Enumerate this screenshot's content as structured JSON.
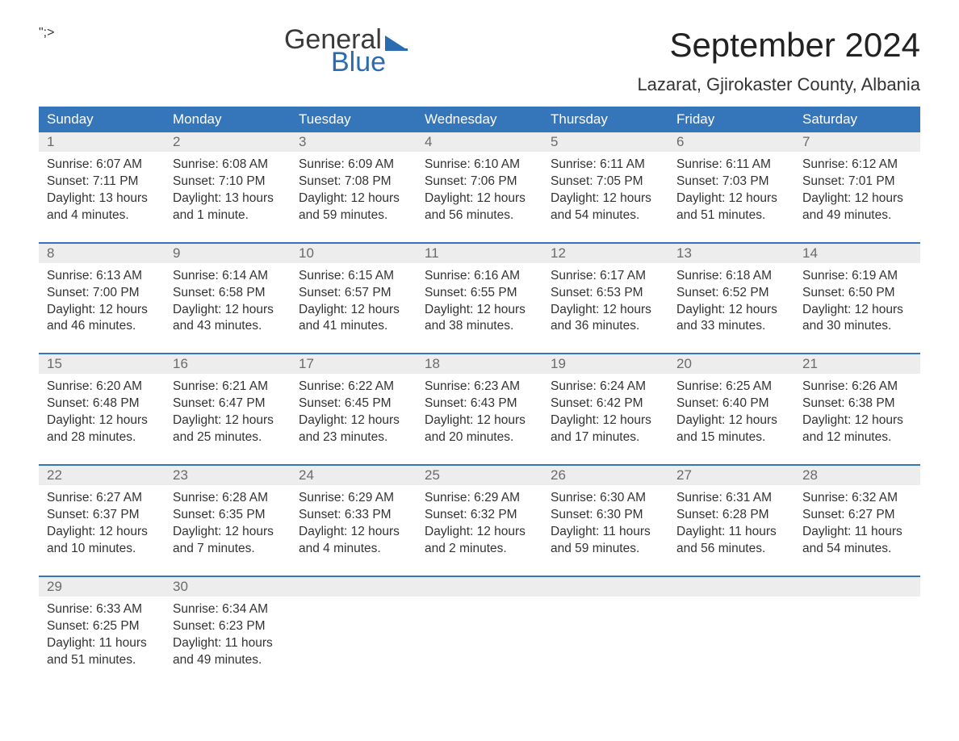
{
  "logo": {
    "word1": "General",
    "word2": "Blue"
  },
  "title": "September 2024",
  "location": "Lazarat, Gjirokaster County, Albania",
  "colors": {
    "header_bg": "#3575b9",
    "header_text": "#ffffff",
    "daynum_bg": "#ededed",
    "daynum_text": "#6b6b6b",
    "body_text": "#333333",
    "week_border": "#3575b9",
    "logo_blue": "#2b6cb0"
  },
  "dow": [
    "Sunday",
    "Monday",
    "Tuesday",
    "Wednesday",
    "Thursday",
    "Friday",
    "Saturday"
  ],
  "weeks": [
    [
      {
        "n": "1",
        "sunrise": "Sunrise: 6:07 AM",
        "sunset": "Sunset: 7:11 PM",
        "d1": "Daylight: 13 hours",
        "d2": "and 4 minutes."
      },
      {
        "n": "2",
        "sunrise": "Sunrise: 6:08 AM",
        "sunset": "Sunset: 7:10 PM",
        "d1": "Daylight: 13 hours",
        "d2": "and 1 minute."
      },
      {
        "n": "3",
        "sunrise": "Sunrise: 6:09 AM",
        "sunset": "Sunset: 7:08 PM",
        "d1": "Daylight: 12 hours",
        "d2": "and 59 minutes."
      },
      {
        "n": "4",
        "sunrise": "Sunrise: 6:10 AM",
        "sunset": "Sunset: 7:06 PM",
        "d1": "Daylight: 12 hours",
        "d2": "and 56 minutes."
      },
      {
        "n": "5",
        "sunrise": "Sunrise: 6:11 AM",
        "sunset": "Sunset: 7:05 PM",
        "d1": "Daylight: 12 hours",
        "d2": "and 54 minutes."
      },
      {
        "n": "6",
        "sunrise": "Sunrise: 6:11 AM",
        "sunset": "Sunset: 7:03 PM",
        "d1": "Daylight: 12 hours",
        "d2": "and 51 minutes."
      },
      {
        "n": "7",
        "sunrise": "Sunrise: 6:12 AM",
        "sunset": "Sunset: 7:01 PM",
        "d1": "Daylight: 12 hours",
        "d2": "and 49 minutes."
      }
    ],
    [
      {
        "n": "8",
        "sunrise": "Sunrise: 6:13 AM",
        "sunset": "Sunset: 7:00 PM",
        "d1": "Daylight: 12 hours",
        "d2": "and 46 minutes."
      },
      {
        "n": "9",
        "sunrise": "Sunrise: 6:14 AM",
        "sunset": "Sunset: 6:58 PM",
        "d1": "Daylight: 12 hours",
        "d2": "and 43 minutes."
      },
      {
        "n": "10",
        "sunrise": "Sunrise: 6:15 AM",
        "sunset": "Sunset: 6:57 PM",
        "d1": "Daylight: 12 hours",
        "d2": "and 41 minutes."
      },
      {
        "n": "11",
        "sunrise": "Sunrise: 6:16 AM",
        "sunset": "Sunset: 6:55 PM",
        "d1": "Daylight: 12 hours",
        "d2": "and 38 minutes."
      },
      {
        "n": "12",
        "sunrise": "Sunrise: 6:17 AM",
        "sunset": "Sunset: 6:53 PM",
        "d1": "Daylight: 12 hours",
        "d2": "and 36 minutes."
      },
      {
        "n": "13",
        "sunrise": "Sunrise: 6:18 AM",
        "sunset": "Sunset: 6:52 PM",
        "d1": "Daylight: 12 hours",
        "d2": "and 33 minutes."
      },
      {
        "n": "14",
        "sunrise": "Sunrise: 6:19 AM",
        "sunset": "Sunset: 6:50 PM",
        "d1": "Daylight: 12 hours",
        "d2": "and 30 minutes."
      }
    ],
    [
      {
        "n": "15",
        "sunrise": "Sunrise: 6:20 AM",
        "sunset": "Sunset: 6:48 PM",
        "d1": "Daylight: 12 hours",
        "d2": "and 28 minutes."
      },
      {
        "n": "16",
        "sunrise": "Sunrise: 6:21 AM",
        "sunset": "Sunset: 6:47 PM",
        "d1": "Daylight: 12 hours",
        "d2": "and 25 minutes."
      },
      {
        "n": "17",
        "sunrise": "Sunrise: 6:22 AM",
        "sunset": "Sunset: 6:45 PM",
        "d1": "Daylight: 12 hours",
        "d2": "and 23 minutes."
      },
      {
        "n": "18",
        "sunrise": "Sunrise: 6:23 AM",
        "sunset": "Sunset: 6:43 PM",
        "d1": "Daylight: 12 hours",
        "d2": "and 20 minutes."
      },
      {
        "n": "19",
        "sunrise": "Sunrise: 6:24 AM",
        "sunset": "Sunset: 6:42 PM",
        "d1": "Daylight: 12 hours",
        "d2": "and 17 minutes."
      },
      {
        "n": "20",
        "sunrise": "Sunrise: 6:25 AM",
        "sunset": "Sunset: 6:40 PM",
        "d1": "Daylight: 12 hours",
        "d2": "and 15 minutes."
      },
      {
        "n": "21",
        "sunrise": "Sunrise: 6:26 AM",
        "sunset": "Sunset: 6:38 PM",
        "d1": "Daylight: 12 hours",
        "d2": "and 12 minutes."
      }
    ],
    [
      {
        "n": "22",
        "sunrise": "Sunrise: 6:27 AM",
        "sunset": "Sunset: 6:37 PM",
        "d1": "Daylight: 12 hours",
        "d2": "and 10 minutes."
      },
      {
        "n": "23",
        "sunrise": "Sunrise: 6:28 AM",
        "sunset": "Sunset: 6:35 PM",
        "d1": "Daylight: 12 hours",
        "d2": "and 7 minutes."
      },
      {
        "n": "24",
        "sunrise": "Sunrise: 6:29 AM",
        "sunset": "Sunset: 6:33 PM",
        "d1": "Daylight: 12 hours",
        "d2": "and 4 minutes."
      },
      {
        "n": "25",
        "sunrise": "Sunrise: 6:29 AM",
        "sunset": "Sunset: 6:32 PM",
        "d1": "Daylight: 12 hours",
        "d2": "and 2 minutes."
      },
      {
        "n": "26",
        "sunrise": "Sunrise: 6:30 AM",
        "sunset": "Sunset: 6:30 PM",
        "d1": "Daylight: 11 hours",
        "d2": "and 59 minutes."
      },
      {
        "n": "27",
        "sunrise": "Sunrise: 6:31 AM",
        "sunset": "Sunset: 6:28 PM",
        "d1": "Daylight: 11 hours",
        "d2": "and 56 minutes."
      },
      {
        "n": "28",
        "sunrise": "Sunrise: 6:32 AM",
        "sunset": "Sunset: 6:27 PM",
        "d1": "Daylight: 11 hours",
        "d2": "and 54 minutes."
      }
    ],
    [
      {
        "n": "29",
        "sunrise": "Sunrise: 6:33 AM",
        "sunset": "Sunset: 6:25 PM",
        "d1": "Daylight: 11 hours",
        "d2": "and 51 minutes."
      },
      {
        "n": "30",
        "sunrise": "Sunrise: 6:34 AM",
        "sunset": "Sunset: 6:23 PM",
        "d1": "Daylight: 11 hours",
        "d2": "and 49 minutes."
      },
      null,
      null,
      null,
      null,
      null
    ]
  ]
}
